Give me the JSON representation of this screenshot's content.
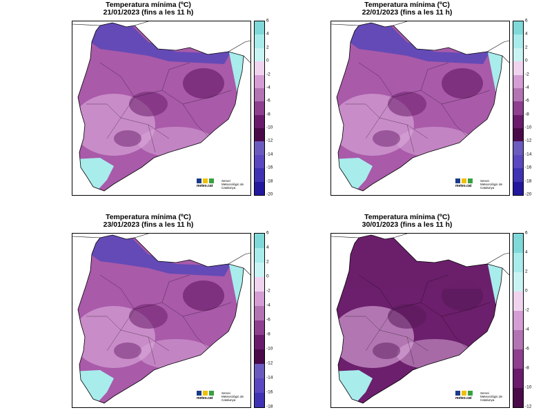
{
  "title_line1": "Temperatura mínima (ºC)",
  "logo": {
    "brand": "meteo.cat",
    "service": "Servei Meteorològic de Catalunya"
  },
  "colors": {
    "cyan": "#a8ecec",
    "light_purple": "#d9a7d9",
    "purple": "#a95aa9",
    "dark_purple": "#6c1f6c",
    "blue_purple": "#5848b8",
    "dark_blue": "#1a1aa0",
    "border": "#000000"
  },
  "panels": [
    {
      "date_line": "21/01/2023 (fins a les 11 h)",
      "scale": [
        "6",
        "4",
        "2",
        "0",
        "-2",
        "-4",
        "-6",
        "-8",
        "-10",
        "-12",
        "-14",
        "-16",
        "-18",
        "-20"
      ]
    },
    {
      "date_line": "22/01/2023 (fins a les 11 h)",
      "scale": [
        "6",
        "4",
        "2",
        "0",
        "-2",
        "-4",
        "-6",
        "-8",
        "-10",
        "-12",
        "-14",
        "-16",
        "-18",
        "-20"
      ]
    },
    {
      "date_line": "23/01/2023 (fins a les 11 h)",
      "scale": [
        "6",
        "4",
        "2",
        "0",
        "-2",
        "-4",
        "-6",
        "-8",
        "-10",
        "-12",
        "-14",
        "-16",
        "-18"
      ]
    },
    {
      "date_line": "30/01/2023 (fins a les 11 h)",
      "scale": [
        "6",
        "4",
        "2",
        "0",
        "-2",
        "-4",
        "-6",
        "-8",
        "-10",
        "-12"
      ]
    }
  ]
}
